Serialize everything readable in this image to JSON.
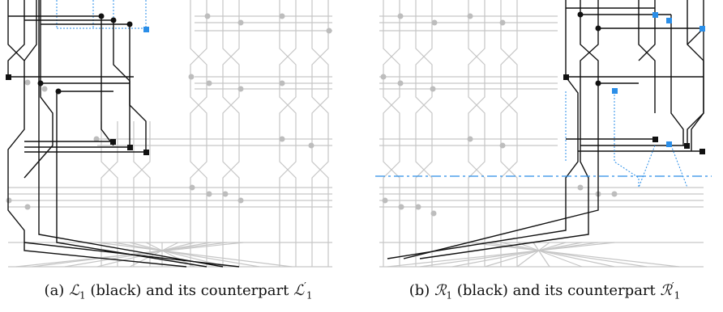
{
  "figure": {
    "panels": [
      {
        "id": "a",
        "caption_label": "(a)",
        "caption_set": "ℒ",
        "caption_sub": "1",
        "caption_middle": "(black) and its counterpart",
        "caption_set2": "ℒ",
        "caption_sup2": "′",
        "caption_sub2": "1"
      },
      {
        "id": "b",
        "caption_label": "(b)",
        "caption_set": "ℛ",
        "caption_sub": "1",
        "caption_middle": "(black) and its counterpart",
        "caption_set2": "ℛ",
        "caption_sup2": "′",
        "caption_sub2": "1"
      }
    ]
  },
  "colors": {
    "background_wire": "#c6c6c6",
    "highlight": "#111111",
    "counterpart": "#2a8ee8",
    "gray_node": "#bdbdbd"
  }
}
